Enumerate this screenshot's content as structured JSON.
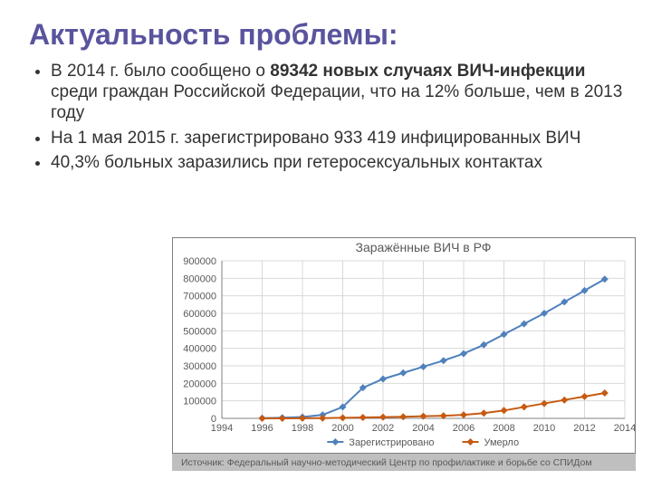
{
  "title": "Актуальность проблемы:",
  "title_color": "#5a549e",
  "bullets": [
    {
      "pre": "В 2014 г. было сообщено о ",
      "bold": "89342 новых случаях ВИЧ-инфекции",
      "post": " среди граждан Российской Федерации,  что на 12% больше, чем в 2013 году"
    },
    {
      "pre": "На 1 мая 2015 г. зарегистрировано 933 419 инфицированных ВИЧ",
      "bold": "",
      "post": ""
    },
    {
      "pre": "40,3% больных заразились при гетеросексуальных контактах",
      "bold": "",
      "post": ""
    }
  ],
  "chart": {
    "type": "line",
    "title": "Заражённые ВИЧ в РФ",
    "background_color": "#ffffff",
    "plot_bg": "#ffffff",
    "grid_color": "#d9d9d9",
    "axis_color": "#808080",
    "text_color": "#595959",
    "title_fontsize": 14,
    "label_fontsize": 11,
    "xlim": [
      1994,
      2014
    ],
    "ylim": [
      0,
      900000
    ],
    "xtick_step": 2,
    "ytick_step": 100000,
    "xticks": [
      1994,
      1996,
      1998,
      2000,
      2002,
      2004,
      2006,
      2008,
      2010,
      2012,
      2014
    ],
    "yticks": [
      0,
      100000,
      200000,
      300000,
      400000,
      500000,
      600000,
      700000,
      800000,
      900000
    ],
    "marker_style": "diamond",
    "marker_size": 4,
    "line_width": 2,
    "series": [
      {
        "name": "Зарегистрировано",
        "color": "#4f81bd",
        "x": [
          1996,
          1997,
          1998,
          1999,
          2000,
          2001,
          2002,
          2003,
          2004,
          2005,
          2006,
          2007,
          2008,
          2009,
          2010,
          2011,
          2012,
          2013
        ],
        "y": [
          1500,
          4000,
          8000,
          20000,
          65000,
          175000,
          225000,
          260000,
          295000,
          330000,
          370000,
          420000,
          480000,
          540000,
          600000,
          665000,
          730000,
          795000
        ]
      },
      {
        "name": "Умерло",
        "color": "#c65a11",
        "x": [
          1996,
          1997,
          1998,
          1999,
          2000,
          2001,
          2002,
          2003,
          2004,
          2005,
          2006,
          2007,
          2008,
          2009,
          2010,
          2011,
          2012,
          2013
        ],
        "y": [
          100,
          300,
          800,
          1500,
          3000,
          5000,
          7000,
          9000,
          12000,
          15000,
          20000,
          30000,
          45000,
          65000,
          85000,
          105000,
          125000,
          145000
        ]
      }
    ],
    "legend_position": "bottom",
    "source": "Источник: Федеральный научно-методический Центр по профилактике и борьбе со СПИДом"
  }
}
